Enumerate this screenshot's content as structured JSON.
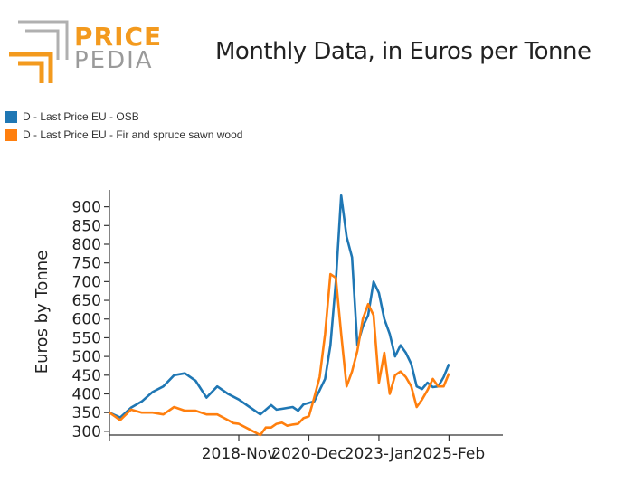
{
  "logo": {
    "word1": "PRICE",
    "word2": "PEDIA"
  },
  "chart_data": {
    "type": "line",
    "title": "Monthly Data, in Euros per Tonne",
    "ylabel": "Euros by Tonne",
    "xlabel": "",
    "ylim": [
      290,
      945
    ],
    "yticks": [
      300,
      350,
      400,
      450,
      500,
      550,
      600,
      650,
      700,
      750,
      800,
      850,
      900
    ],
    "xlim": [
      0,
      146
    ],
    "xticks": [
      {
        "x": 0,
        "label": ""
      },
      {
        "x": 48,
        "label": "2018-Nov"
      },
      {
        "x": 74,
        "label": "2020-Dec"
      },
      {
        "x": 100,
        "label": "2023-Jan"
      },
      {
        "x": 126,
        "label": "2025-Feb"
      }
    ],
    "legend_position": "top-left",
    "series": [
      {
        "name": "D - Last Price EU - OSB",
        "color": "#1f77b4",
        "x": [
          0,
          4,
          8,
          12,
          16,
          20,
          24,
          28,
          32,
          36,
          40,
          44,
          48,
          52,
          56,
          60,
          62,
          64,
          68,
          70,
          72,
          76,
          80,
          82,
          84,
          86,
          88,
          90,
          92,
          94,
          96,
          98,
          100,
          102,
          104,
          106,
          108,
          110,
          112,
          114,
          116,
          118,
          120,
          122,
          124,
          126
        ],
        "y": [
          350,
          337,
          363,
          380,
          405,
          420,
          450,
          455,
          435,
          390,
          420,
          400,
          385,
          365,
          345,
          370,
          358,
          360,
          365,
          355,
          372,
          380,
          440,
          530,
          700,
          930,
          820,
          765,
          530,
          580,
          610,
          700,
          670,
          600,
          560,
          500,
          530,
          510,
          480,
          420,
          413,
          430,
          418,
          420,
          445,
          480
        ]
      },
      {
        "name": "D - Last Price EU - Fir and spruce sawn wood",
        "color": "#ff7f0e",
        "x": [
          0,
          4,
          8,
          12,
          16,
          20,
          24,
          28,
          32,
          36,
          40,
          44,
          46,
          48,
          52,
          56,
          58,
          60,
          62,
          64,
          66,
          68,
          70,
          72,
          74,
          76,
          78,
          80,
          82,
          84,
          86,
          88,
          90,
          92,
          94,
          96,
          98,
          100,
          102,
          104,
          106,
          108,
          110,
          112,
          114,
          116,
          118,
          120,
          122,
          124,
          126
        ],
        "y": [
          350,
          330,
          358,
          350,
          350,
          345,
          365,
          355,
          355,
          345,
          345,
          330,
          322,
          320,
          305,
          290,
          310,
          310,
          320,
          323,
          315,
          318,
          320,
          335,
          340,
          390,
          445,
          560,
          720,
          710,
          560,
          420,
          460,
          515,
          600,
          640,
          610,
          430,
          510,
          400,
          450,
          460,
          445,
          420,
          365,
          385,
          410,
          440,
          420,
          420,
          455
        ]
      }
    ]
  }
}
